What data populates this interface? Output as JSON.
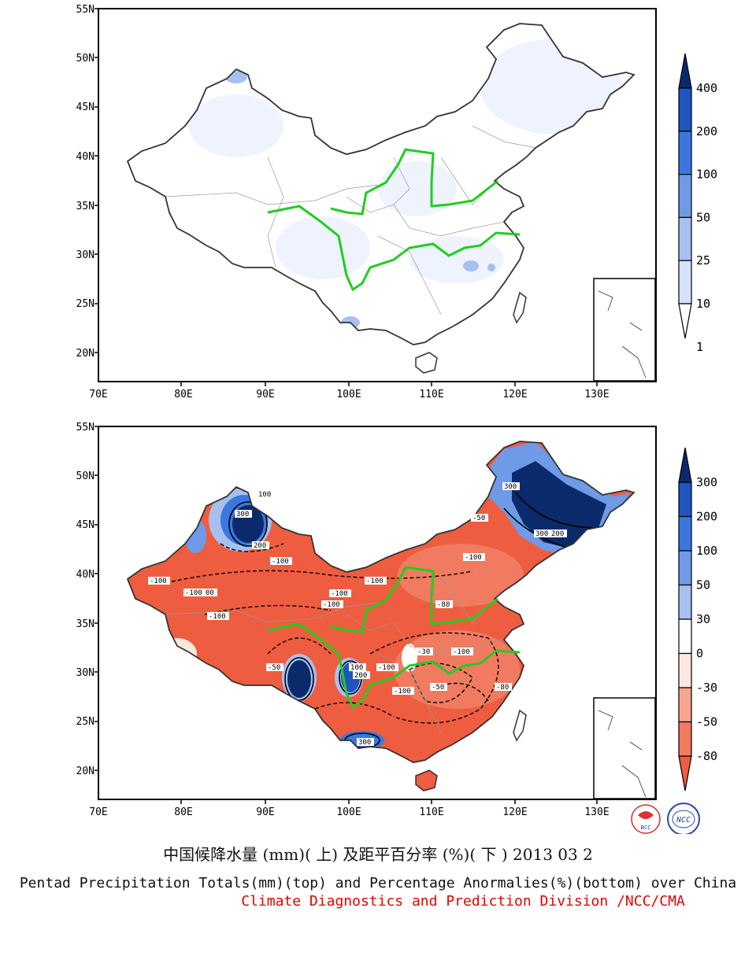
{
  "lat_labels": [
    "55N",
    "50N",
    "45N",
    "40N",
    "35N",
    "30N",
    "25N",
    "20N"
  ],
  "lon_labels": [
    "70E",
    "80E",
    "90E",
    "100E",
    "110E",
    "120E",
    "130E"
  ],
  "top_panel": {
    "legend_labels": [
      "400",
      "200",
      "100",
      "50",
      "25",
      "10",
      "1"
    ],
    "legend_colors": [
      "#0a2a6b",
      "#1f55c0",
      "#3a78e0",
      "#6e9ae8",
      "#a7c0f0",
      "#d6e2fa",
      "#ffffff"
    ]
  },
  "bottom_panel": {
    "legend_labels": [
      "300",
      "200",
      "100",
      "50",
      "30",
      "0",
      "-30",
      "-50",
      "-80"
    ],
    "legend_colors": [
      "#0a2a6b",
      "#1f55c0",
      "#3a78e0",
      "#6e9ae8",
      "#a7c0f0",
      "#ffffff",
      "#fde8df",
      "#f6a58f",
      "#f07b60",
      "#ee5d3f"
    ],
    "contour_labels": [
      "-100",
      "-100",
      "-100",
      "-100",
      "-100",
      "-100",
      "-100",
      "-80",
      "-50",
      "-50",
      "-30",
      "200",
      "300",
      "300",
      "300",
      "200",
      "100",
      "-100",
      "-80",
      "-50",
      "-100",
      "100",
      "200",
      "300",
      "-100",
      "-100",
      "-100"
    ]
  },
  "logos": {
    "bcc": "BCC",
    "ncc": "NCC"
  },
  "caption_cn": "中国候降水量 (mm)( 上) 及距平百分率 (%)( 下 ) 2013 03 2",
  "caption_en": "Pentad Precipitation Totals(mm)(top) and Percentage Anormalies(%)(bottom) over China",
  "caption_org": "Climate Diagnostics and Prediction Division /NCC/CMA"
}
